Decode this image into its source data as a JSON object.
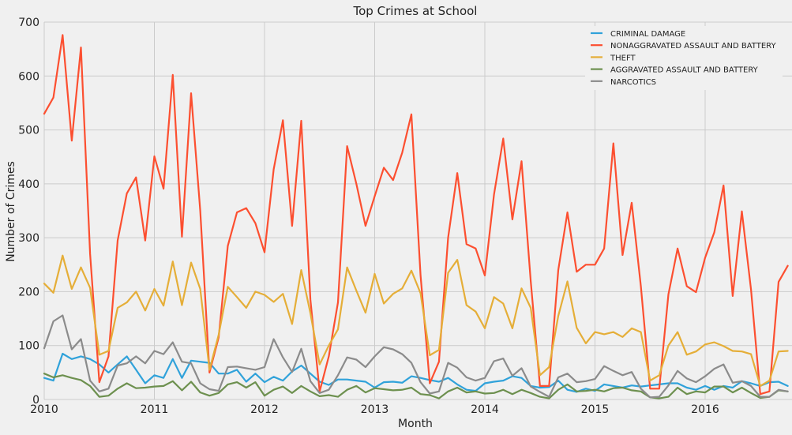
{
  "chart_data": {
    "type": "line",
    "title": "Top Crimes at School",
    "xlabel": "Month",
    "ylabel": "Number of Crimes",
    "ylim": [
      0,
      700
    ],
    "yticks": [
      0,
      100,
      200,
      300,
      400,
      500,
      600,
      700
    ],
    "xticks": [
      "2010",
      "2011",
      "2012",
      "2013",
      "2014",
      "2015",
      "2016"
    ],
    "start_year": 2010,
    "grid": true,
    "legend_position": "top-right",
    "colors": [
      "#30a2da",
      "#fc4f30",
      "#e5ae38",
      "#6d904f",
      "#8b8b8b"
    ],
    "series": [
      {
        "name": "CRIMINAL DAMAGE",
        "values": [
          40,
          35,
          85,
          75,
          80,
          75,
          65,
          50,
          65,
          80,
          55,
          30,
          45,
          40,
          75,
          40,
          72,
          70,
          68,
          48,
          48,
          55,
          33,
          48,
          32,
          42,
          35,
          52,
          63,
          48,
          33,
          27,
          37,
          37,
          35,
          33,
          22,
          32,
          33,
          31,
          43,
          40,
          36,
          33,
          40,
          28,
          18,
          16,
          30,
          33,
          35,
          43,
          40,
          25,
          22,
          23,
          35,
          18,
          14,
          20,
          16,
          28,
          25,
          22,
          26,
          24,
          26,
          28,
          30,
          30,
          22,
          18,
          25,
          18,
          25,
          22,
          34,
          30,
          25,
          32,
          33,
          25
        ]
      },
      {
        "name": "NONAGGRAVATED ASSAULT AND BATTERY",
        "values": [
          530,
          560,
          676,
          480,
          653,
          270,
          32,
          80,
          295,
          382,
          412,
          295,
          451,
          391,
          602,
          302,
          568,
          350,
          50,
          115,
          285,
          347,
          355,
          327,
          273,
          427,
          518,
          322,
          517,
          185,
          15,
          80,
          180,
          470,
          400,
          322,
          377,
          430,
          407,
          458,
          529,
          230,
          30,
          70,
          300,
          420,
          288,
          280,
          230,
          380,
          484,
          334,
          442,
          220,
          25,
          25,
          240,
          347,
          237,
          250,
          250,
          280,
          475,
          268,
          365,
          210,
          20,
          20,
          195,
          280,
          210,
          199,
          263,
          310,
          397,
          192,
          349,
          204,
          10,
          15,
          218,
          248
        ]
      },
      {
        "name": "THEFT",
        "values": [
          215,
          198,
          267,
          205,
          245,
          207,
          83,
          90,
          170,
          180,
          200,
          165,
          205,
          174,
          256,
          175,
          254,
          205,
          55,
          120,
          209,
          190,
          170,
          200,
          194,
          181,
          196,
          140,
          240,
          160,
          65,
          100,
          130,
          245,
          202,
          161,
          233,
          178,
          196,
          206,
          239,
          197,
          82,
          92,
          235,
          259,
          175,
          163,
          132,
          190,
          178,
          132,
          206,
          170,
          45,
          60,
          155,
          219,
          133,
          104,
          125,
          121,
          125,
          116,
          132,
          125,
          35,
          45,
          100,
          125,
          83,
          89,
          102,
          106,
          99,
          90,
          89,
          84,
          25,
          35,
          89,
          90
        ]
      },
      {
        "name": "AGGRAVATED ASSAULT AND BATTERY",
        "values": [
          48,
          41,
          45,
          40,
          36,
          25,
          5,
          7,
          20,
          30,
          21,
          22,
          24,
          25,
          34,
          17,
          33,
          13,
          7,
          12,
          28,
          32,
          22,
          32,
          7,
          18,
          24,
          12,
          25,
          15,
          6,
          8,
          5,
          18,
          25,
          13,
          21,
          19,
          17,
          18,
          22,
          10,
          8,
          2,
          15,
          22,
          13,
          15,
          11,
          12,
          18,
          10,
          18,
          12,
          5,
          2,
          18,
          28,
          15,
          16,
          18,
          15,
          21,
          22,
          17,
          15,
          4,
          2,
          5,
          22,
          10,
          15,
          13,
          24,
          24,
          13,
          22,
          12,
          3,
          5,
          17,
          15
        ]
      },
      {
        "name": "NARCOTICS",
        "values": [
          95,
          145,
          156,
          93,
          112,
          35,
          15,
          20,
          63,
          67,
          80,
          67,
          90,
          84,
          106,
          70,
          67,
          30,
          19,
          16,
          60,
          61,
          58,
          55,
          60,
          112,
          78,
          51,
          94,
          34,
          12,
          18,
          45,
          78,
          74,
          60,
          80,
          97,
          93,
          84,
          68,
          32,
          11,
          15,
          68,
          59,
          41,
          35,
          40,
          71,
          76,
          44,
          58,
          24,
          14,
          5,
          41,
          48,
          32,
          34,
          38,
          62,
          53,
          45,
          51,
          20,
          4,
          5,
          26,
          53,
          39,
          32,
          43,
          57,
          65,
          31,
          34,
          25,
          5,
          5,
          18,
          15
        ]
      }
    ]
  }
}
